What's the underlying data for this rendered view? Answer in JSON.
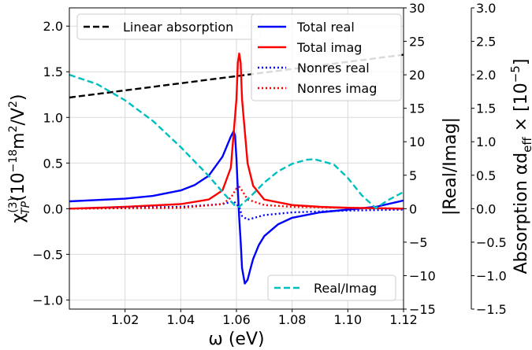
{
  "chart_data": {
    "type": "line",
    "xlabel": "ω (eV)",
    "xlim": [
      1.0,
      1.12
    ],
    "x_ticks": [
      "1.02",
      "1.04",
      "1.06",
      "1.08",
      "1.10",
      "1.12"
    ],
    "y_left": {
      "label_parts": {
        "chi": "χ",
        "sup": "(3)",
        "sub": "TP",
        "units": "(10",
        "units_exp": "−18",
        "units_tail": "m",
        "m_exp": "2",
        "slash": "/V",
        "v_exp": "2",
        "close": ")"
      },
      "ylim": [
        -1.1,
        2.2
      ],
      "ticks": [
        "−1.0",
        "−0.5",
        "0.0",
        "0.5",
        "1.0",
        "1.5",
        "2.0"
      ]
    },
    "y_right1": {
      "label": "|Real/Imag|",
      "ylim": [
        -15,
        30
      ],
      "ticks": [
        "−15",
        "−10",
        "−5",
        "0",
        "5",
        "10",
        "15",
        "20",
        "25",
        "30"
      ]
    },
    "y_right2": {
      "label_parts": {
        "main": "Absorption αd",
        "sub": "eff",
        "mult": " × [10",
        "exp": "−5",
        "close": "]"
      },
      "ylim": [
        -1.5,
        3.0
      ],
      "ticks": [
        "−1.5",
        "−1.0",
        "−0.5",
        "0.0",
        "0.5",
        "1.0",
        "1.5",
        "2.0",
        "2.5",
        "3.0"
      ]
    },
    "grid": true,
    "legend_left": {
      "position": "top-left",
      "entries": [
        "Linear absorption"
      ]
    },
    "legend_main": {
      "position": "top-right",
      "entries": [
        "Total real",
        "Total imag",
        "Nonres real",
        "Nonres imag"
      ]
    },
    "legend_ratio": {
      "position": "bottom-right",
      "entries": [
        "Real/Imag"
      ]
    },
    "series": [
      {
        "name": "Linear absorption",
        "axis": "y_right2",
        "color": "#000000",
        "style": "dashed",
        "x": [
          1.0,
          1.12
        ],
        "values": [
          1.66,
          2.3
        ]
      },
      {
        "name": "Total real",
        "axis": "y_left",
        "color": "#0000ff",
        "style": "solid",
        "x": [
          1.0,
          1.02,
          1.03,
          1.04,
          1.045,
          1.05,
          1.055,
          1.058,
          1.059,
          1.0595,
          1.06,
          1.0605,
          1.061,
          1.0615,
          1.062,
          1.063,
          1.064,
          1.065,
          1.066,
          1.068,
          1.07,
          1.075,
          1.08,
          1.09,
          1.1,
          1.11,
          1.12
        ],
        "values": [
          0.08,
          0.11,
          0.14,
          0.2,
          0.26,
          0.36,
          0.57,
          0.79,
          0.85,
          0.8,
          0.55,
          0.2,
          -0.1,
          -0.35,
          -0.65,
          -0.82,
          -0.78,
          -0.66,
          -0.55,
          -0.4,
          -0.3,
          -0.17,
          -0.1,
          -0.04,
          -0.01,
          0.02,
          0.09
        ]
      },
      {
        "name": "Total imag",
        "axis": "y_left",
        "color": "#ff0000",
        "style": "solid",
        "x": [
          1.0,
          1.02,
          1.04,
          1.05,
          1.055,
          1.058,
          1.06,
          1.0605,
          1.061,
          1.0615,
          1.062,
          1.064,
          1.066,
          1.07,
          1.08,
          1.09,
          1.1,
          1.12
        ],
        "values": [
          0.0,
          0.02,
          0.05,
          0.1,
          0.2,
          0.45,
          1.2,
          1.6,
          1.7,
          1.6,
          1.2,
          0.5,
          0.25,
          0.1,
          0.04,
          0.02,
          0.01,
          0.0
        ]
      },
      {
        "name": "Nonres real",
        "axis": "y_left",
        "color": "#0000ff",
        "style": "dotted",
        "x": [
          1.0,
          1.04,
          1.055,
          1.059,
          1.061,
          1.062,
          1.064,
          1.07,
          1.08,
          1.1,
          1.12
        ],
        "values": [
          0.0,
          0.02,
          0.05,
          0.08,
          0.02,
          -0.08,
          -0.12,
          -0.07,
          -0.04,
          -0.02,
          -0.01
        ]
      },
      {
        "name": "Nonres imag",
        "axis": "y_left",
        "color": "#ff0000",
        "style": "dotted",
        "x": [
          1.0,
          1.04,
          1.055,
          1.058,
          1.06,
          1.061,
          1.062,
          1.064,
          1.07,
          1.08,
          1.12
        ],
        "values": [
          0.0,
          0.01,
          0.05,
          0.12,
          0.22,
          0.24,
          0.2,
          0.1,
          0.04,
          0.02,
          0.0
        ]
      },
      {
        "name": "Real/Imag",
        "axis": "y_right1",
        "color": "#00bfbf",
        "style": "dashed",
        "x": [
          1.0,
          1.01,
          1.02,
          1.03,
          1.04,
          1.05,
          1.055,
          1.06,
          1.061,
          1.065,
          1.07,
          1.075,
          1.08,
          1.085,
          1.088,
          1.095,
          1.1,
          1.105,
          1.11,
          1.115,
          1.12
        ],
        "values": [
          20.0,
          18.6,
          16.2,
          13.1,
          9.2,
          4.9,
          2.5,
          0.2,
          0.3,
          1.8,
          3.9,
          5.6,
          6.7,
          7.3,
          7.4,
          6.6,
          4.6,
          2.0,
          0.1,
          1.4,
          2.5
        ]
      }
    ]
  }
}
